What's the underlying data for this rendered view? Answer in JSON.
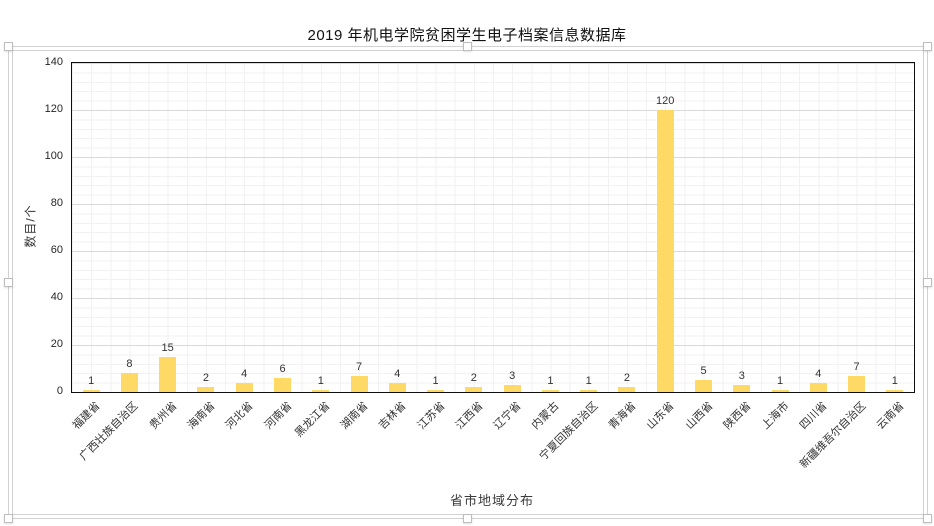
{
  "chart_data": {
    "type": "bar",
    "title": "2019 年机电学院贫困学生电子档案信息数据库",
    "xlabel": "省市地域分布",
    "ylabel": "数目/个",
    "categories": [
      "福建省",
      "广西壮族自治区",
      "贵州省",
      "海南省",
      "河北省",
      "河南省",
      "黑龙江省",
      "湖南省",
      "吉林省",
      "江苏省",
      "江西省",
      "辽宁省",
      "内蒙古",
      "宁夏回族自治区",
      "青海省",
      "山东省",
      "山西省",
      "陕西省",
      "上海市",
      "四川省",
      "新疆维吾尔自治区",
      "云南省"
    ],
    "values": [
      1,
      8,
      15,
      2,
      4,
      6,
      1,
      7,
      4,
      1,
      2,
      3,
      1,
      1,
      2,
      120,
      5,
      3,
      1,
      4,
      7,
      1
    ],
    "ylim": [
      0,
      140
    ],
    "y_tick_interval": 20,
    "y_minor_interval": 4,
    "grid": "major-and-minor",
    "legend_position": "none",
    "data_labels": "outside-end",
    "bar_color": "#FFD966",
    "gridline_major_color": "#d9d9d9",
    "gridline_minor_color": "#f2f2f2",
    "plot_border_color": "#0d0d0d"
  },
  "selection": {
    "state": "chart-selected",
    "frame_color": "#d2d2d2",
    "handle_fill": "#ffffff",
    "handle_border": "#bdbdbd",
    "handles": [
      "top-left",
      "top-center",
      "top-right",
      "middle-left",
      "middle-right",
      "bottom-left",
      "bottom-center",
      "bottom-right"
    ]
  }
}
